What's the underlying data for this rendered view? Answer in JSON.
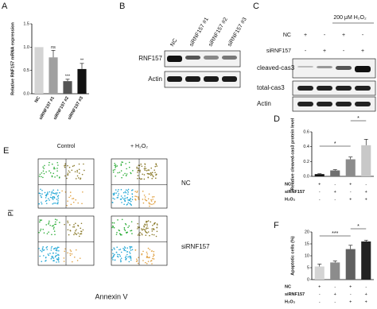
{
  "panel_labels": [
    "A",
    "B",
    "C",
    "D",
    "E",
    "F"
  ],
  "chart_data": [
    {
      "type": "bar",
      "y_label": "Relative RNF157 mRNA expression",
      "categories": [
        "NC",
        "siRNF157 #1",
        "siRNF157 #2",
        "siRNF157 #3"
      ],
      "values": [
        1.0,
        0.78,
        0.27,
        0.53
      ],
      "errors": [
        0.0,
        0.15,
        0.04,
        0.12
      ],
      "colors": [
        "#d4d4d4",
        "#a0a0a0",
        "#555555",
        "#111111"
      ],
      "annotations": [
        null,
        "ns",
        "***",
        "**"
      ],
      "ylim": [
        0,
        1.5
      ],
      "yticks": [
        {
          "value": 0,
          "label": "0.0"
        },
        {
          "value": 0.5,
          "label": "0.5"
        },
        {
          "value": 1,
          "label": "1.0"
        },
        {
          "value": 1.5,
          "label": "1.5"
        }
      ]
    },
    {
      "type": "bar",
      "y_label": "Relative cleaved-cas3 protein level",
      "values": [
        0.03,
        0.08,
        0.23,
        0.42
      ],
      "errors": [
        0.005,
        0.01,
        0.03,
        0.08
      ],
      "colors": [
        "#111111",
        "#707070",
        "#8c8c8c",
        "#c8c8c8"
      ],
      "brackets": [
        "*",
        "*"
      ],
      "condition_rows": [
        {
          "name": "NC",
          "marks": [
            "+",
            "-",
            "+",
            "-"
          ]
        },
        {
          "name": "siRNF157",
          "marks": [
            "-",
            "+",
            "-",
            "+"
          ]
        },
        {
          "name": "H₂O₂",
          "marks": [
            "-",
            "-",
            "+",
            "+"
          ]
        }
      ],
      "ylim": [
        0,
        0.6
      ],
      "yticks": [
        {
          "value": 0,
          "label": "0.0"
        },
        {
          "value": 0.2,
          "label": "0.2"
        },
        {
          "value": 0.4,
          "label": "0.4"
        },
        {
          "value": 0.6,
          "label": "0.6"
        }
      ]
    },
    {
      "type": "bar",
      "y_label": "Apoptotic cells (%)",
      "values": [
        5.5,
        7.2,
        12.8,
        16
      ],
      "errors": [
        1.0,
        0.6,
        1.6,
        0.5
      ],
      "colors": [
        "#d4d4d4",
        "#8c8c8c",
        "#606060",
        "#222222"
      ],
      "brackets": [
        "***",
        "*"
      ],
      "condition_rows": [
        {
          "name": "NC",
          "marks": [
            "+",
            "-",
            "+",
            "-"
          ]
        },
        {
          "name": "siRNF157",
          "marks": [
            "-",
            "+",
            "-",
            "+"
          ]
        },
        {
          "name": "H₂O₂",
          "marks": [
            "-",
            "-",
            "+",
            "+"
          ]
        }
      ],
      "ylim": [
        0,
        20
      ],
      "yticks": [
        0,
        5,
        10,
        15,
        20
      ]
    }
  ],
  "blot_b": {
    "lanes": [
      "NC",
      "siRNF157 #1",
      "siRNF157 #2",
      "siRNF157 #3"
    ],
    "rows": [
      "RNF157",
      "Actin"
    ]
  },
  "blot_c": {
    "treatment": "200 μM H₂O₂",
    "conditions": [
      {
        "name": "NC",
        "marks": [
          "+",
          "-",
          "+",
          "-"
        ]
      },
      {
        "name": "siRNF157",
        "marks": [
          "-",
          "+",
          "-",
          "+"
        ]
      }
    ],
    "rows": [
      "cleaved-cas3",
      "total-cas3",
      "Actin"
    ]
  },
  "flow_e": {
    "columns": [
      "Control",
      "+ H₂O₂"
    ],
    "rows": [
      "NC",
      "siRNF157"
    ],
    "y_label": "PI",
    "x_label": "Annexin V"
  }
}
